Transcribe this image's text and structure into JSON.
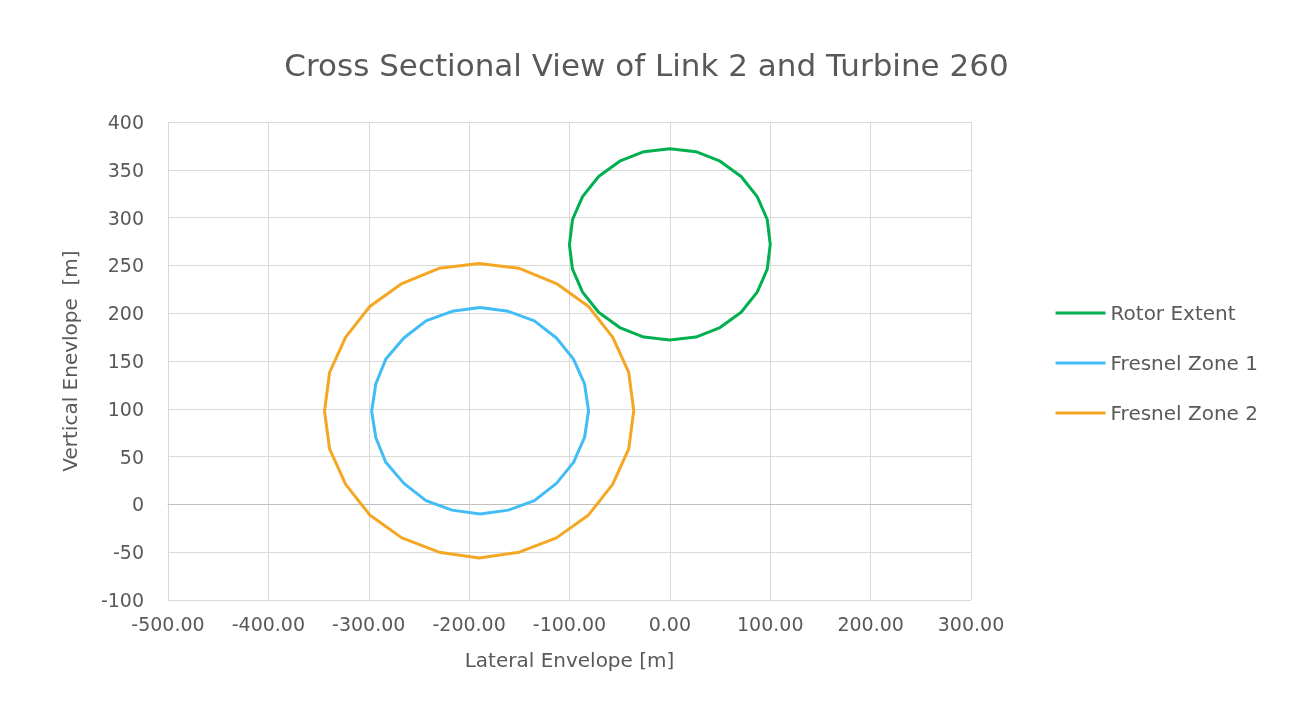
{
  "chart_data": {
    "type": "line",
    "title": "Cross Sectional View of Link 2 and Turbine 260",
    "xlabel": "Lateral Envelope [m]",
    "ylabel": "Vertical Enevlope  [m]",
    "xlim": [
      -500,
      300
    ],
    "xticks": [
      {
        "value": -500,
        "label": "-500.00"
      },
      {
        "value": -400,
        "label": "-400.00"
      },
      {
        "value": -300,
        "label": "-300.00"
      },
      {
        "value": -200,
        "label": "-200.00"
      },
      {
        "value": -100,
        "label": "-100.00"
      },
      {
        "value": 0,
        "label": "0.00"
      },
      {
        "value": 100,
        "label": "100.00"
      },
      {
        "value": 200,
        "label": "200.00"
      },
      {
        "value": 300,
        "label": "300.00"
      }
    ],
    "ylim": [
      -100,
      400
    ],
    "yticks": [
      -100,
      -50,
      0,
      50,
      100,
      150,
      200,
      250,
      300,
      350,
      400
    ],
    "grid": true,
    "legend": "right",
    "marker": "none",
    "line_style": "solid",
    "series": [
      {
        "name": "Rotor Extent",
        "color": "#00b050",
        "x": [
          -100,
          -97,
          -87,
          -71,
          -50,
          -26,
          0,
          26,
          50,
          71,
          87,
          97,
          100,
          97,
          87,
          71,
          50,
          26,
          0,
          -26,
          -50,
          -71,
          -87,
          -97,
          -100
        ],
        "values": [
          272,
          298,
          322,
          343,
          359,
          369,
          372,
          369,
          359,
          343,
          322,
          298,
          272,
          246,
          222,
          201,
          185,
          175,
          172,
          175,
          185,
          201,
          222,
          246,
          271
        ]
      },
      {
        "name": "Fresnel Zone 1",
        "color": "#40bdf6",
        "x": [
          -297,
          -293,
          -283,
          -265,
          -243,
          -217,
          -189,
          -161,
          -135,
          -113,
          -96,
          -85,
          -81,
          -85,
          -96,
          -113,
          -135,
          -161,
          -189,
          -217,
          -243,
          -265,
          -283,
          -293,
          -297
        ],
        "values": [
          98,
          126,
          152,
          174,
          192,
          202,
          206,
          202,
          192,
          174,
          152,
          126,
          98,
          70,
          44,
          22,
          4,
          -6,
          -10,
          -6,
          4,
          22,
          44,
          70,
          97
        ]
      },
      {
        "name": "Fresnel Zone 2",
        "color": "#f5a623",
        "x": [
          -344,
          -339,
          -323,
          -299,
          -267,
          -230,
          -190,
          -150,
          -113,
          -81,
          -57,
          -41,
          -36,
          -41,
          -57,
          -81,
          -113,
          -150,
          -190,
          -230,
          -267,
          -299,
          -323,
          -339,
          -344
        ],
        "values": [
          98,
          138,
          175,
          207,
          231,
          247,
          252,
          247,
          231,
          207,
          175,
          138,
          98,
          58,
          21,
          -11,
          -35,
          -50,
          -56,
          -50,
          -35,
          -11,
          21,
          58,
          97
        ]
      }
    ]
  }
}
